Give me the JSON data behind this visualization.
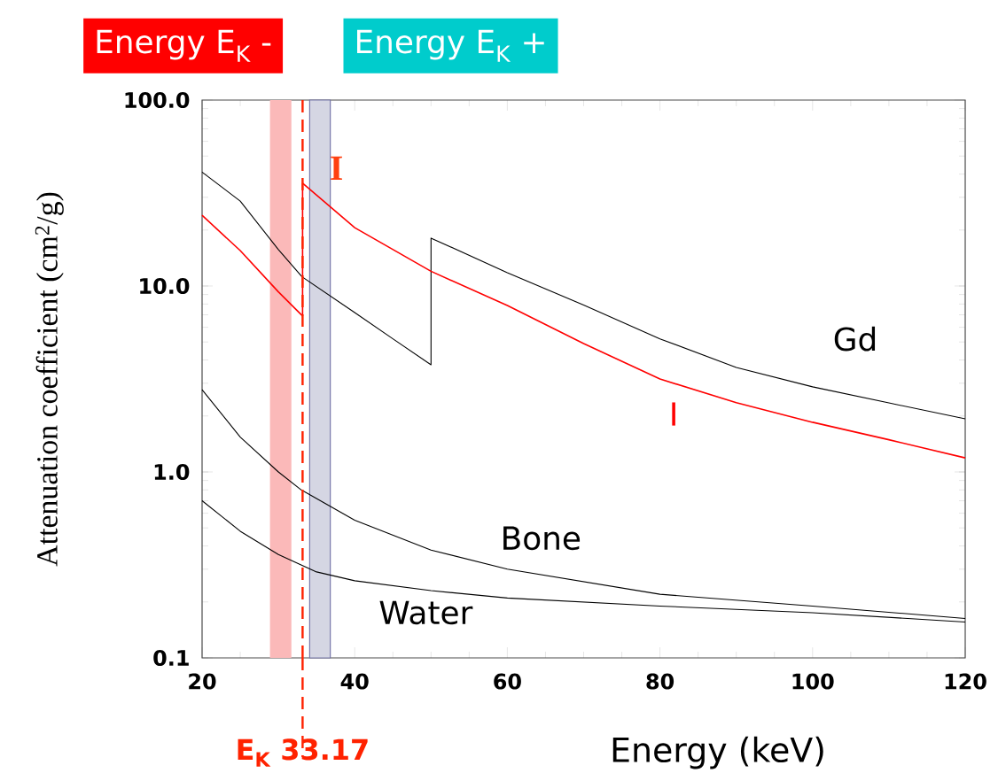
{
  "chart_data": {
    "type": "line",
    "xlabel": "Energy (keV)",
    "ylabel": "Attenuation coefficient (cm$^{2}$/g)",
    "log": "y",
    "grid": false,
    "xlim": [
      20,
      120
    ],
    "xticks": [
      20,
      40,
      60,
      80,
      100,
      120
    ],
    "ylim": [
      0.1,
      100
    ],
    "yticks": [
      {
        "value": 0.1,
        "label": "0.1"
      },
      {
        "value": 1,
        "label": "1.0"
      },
      {
        "value": 10,
        "label": "10.0"
      },
      {
        "value": 100,
        "label": "100.0"
      }
    ],
    "series": [
      {
        "name": "Gd",
        "color": "#000000",
        "x": [
          20,
          25,
          30,
          33.1,
          40,
          45,
          50,
          50,
          60,
          70,
          80,
          90,
          100,
          110,
          120
        ],
        "values": [
          41,
          28.6,
          15.7,
          11.2,
          7.2,
          5.2,
          3.77,
          18.1,
          11.8,
          7.9,
          5.2,
          3.65,
          2.87,
          2.35,
          1.93
        ]
      },
      {
        "name": "I",
        "color": "#ff0000",
        "x": [
          20,
          25,
          30,
          33.17,
          33.17,
          40,
          50,
          60,
          70,
          80,
          90,
          100,
          110,
          120
        ],
        "values": [
          24,
          15.5,
          9.3,
          6.9,
          35.7,
          20.6,
          12.0,
          7.85,
          4.9,
          3.16,
          2.36,
          1.85,
          1.49,
          1.19
        ]
      },
      {
        "name": "Bone",
        "color": "#000000",
        "x": [
          20,
          25,
          30,
          33,
          40,
          50,
          60,
          80,
          100,
          120
        ],
        "values": [
          2.77,
          1.54,
          1.0,
          0.8,
          0.55,
          0.38,
          0.3,
          0.22,
          0.19,
          0.163
        ]
      },
      {
        "name": "Water",
        "color": "#000000",
        "x": [
          20,
          25,
          30,
          35,
          40,
          50,
          60,
          80,
          100,
          120
        ],
        "values": [
          0.7,
          0.48,
          0.36,
          0.29,
          0.26,
          0.23,
          0.21,
          0.19,
          0.175,
          0.156
        ]
      }
    ],
    "bands": [
      {
        "axis": "x",
        "from": 28.9,
        "to": 31.7,
        "label": "Energy E$_{K}$ -",
        "color": "#fbb9b9"
      },
      {
        "axis": "x",
        "from": 34.1,
        "to": 36.8,
        "label": "Energy E$_{K}$ +",
        "color": "#d5d6e3"
      }
    ],
    "ref_lines": [
      {
        "axis": "x",
        "value": 33.17,
        "label": "E$_{K}$ 33.17",
        "color": "#ff2200",
        "line_style": "dashed"
      }
    ],
    "annotations": [
      "I"
    ]
  }
}
